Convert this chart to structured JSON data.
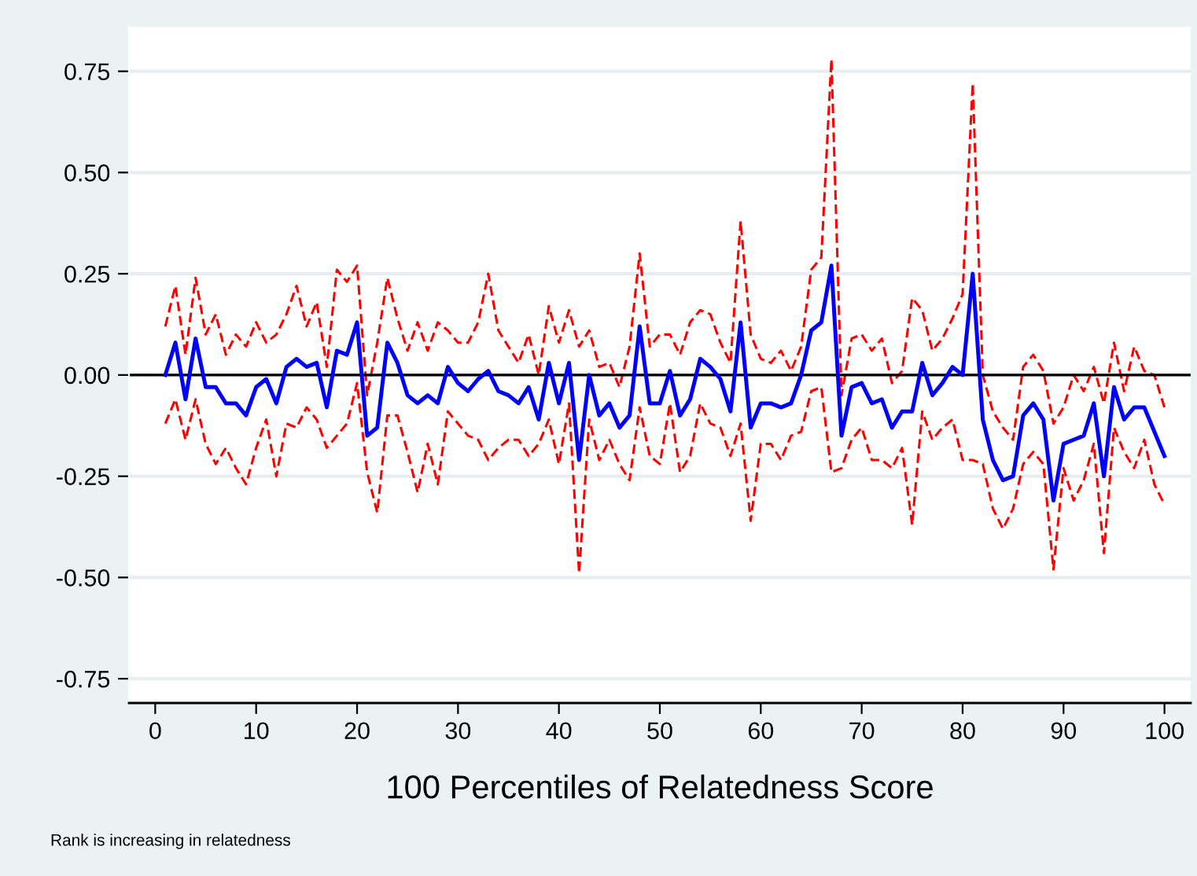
{
  "chart_data": {
    "type": "line",
    "xlabel": "100 Percentiles of Relatedness Score",
    "annotations": [
      "Rank is increasing in relatedness"
    ],
    "x": [
      1,
      2,
      3,
      4,
      5,
      6,
      7,
      8,
      9,
      10,
      11,
      12,
      13,
      14,
      15,
      16,
      17,
      18,
      19,
      20,
      21,
      22,
      23,
      24,
      25,
      26,
      27,
      28,
      29,
      30,
      31,
      32,
      33,
      34,
      35,
      36,
      37,
      38,
      39,
      40,
      41,
      42,
      43,
      44,
      45,
      46,
      47,
      48,
      49,
      50,
      51,
      52,
      53,
      54,
      55,
      56,
      57,
      58,
      59,
      60,
      61,
      62,
      63,
      64,
      65,
      66,
      67,
      68,
      69,
      70,
      71,
      72,
      73,
      74,
      75,
      76,
      77,
      78,
      79,
      80,
      81,
      82,
      83,
      84,
      85,
      86,
      87,
      88,
      89,
      90,
      91,
      92,
      93,
      94,
      95,
      96,
      97,
      98,
      99,
      100
    ],
    "series": [
      {
        "color": "#ff0000",
        "line_style": "dashed",
        "values": [
          0.12,
          0.22,
          0.05,
          0.24,
          0.1,
          0.15,
          0.05,
          0.1,
          0.07,
          0.13,
          0.08,
          0.1,
          0.15,
          0.22,
          0.12,
          0.18,
          0.02,
          0.26,
          0.23,
          0.27,
          -0.05,
          0.08,
          0.24,
          0.14,
          0.06,
          0.13,
          0.06,
          0.13,
          0.11,
          0.08,
          0.08,
          0.13,
          0.25,
          0.11,
          0.07,
          0.03,
          0.1,
          0.0,
          0.17,
          0.08,
          0.16,
          0.07,
          0.11,
          0.02,
          0.03,
          -0.03,
          0.07,
          0.3,
          0.07,
          0.1,
          0.1,
          0.05,
          0.13,
          0.16,
          0.15,
          0.08,
          0.03,
          0.38,
          0.1,
          0.04,
          0.03,
          0.06,
          0.01,
          0.07,
          0.26,
          0.29,
          0.78,
          -0.05,
          0.09,
          0.1,
          0.06,
          0.09,
          -0.02,
          0.01,
          0.19,
          0.16,
          0.06,
          0.09,
          0.14,
          0.2,
          0.72,
          0.0,
          -0.09,
          -0.13,
          -0.16,
          0.02,
          0.05,
          0.01,
          -0.12,
          -0.08,
          0.0,
          -0.04,
          0.02,
          -0.07,
          0.08,
          -0.04,
          0.07,
          0.01,
          0.0,
          -0.08
        ]
      },
      {
        "color": "#ff0000",
        "line_style": "dashed",
        "values": [
          -0.12,
          -0.06,
          -0.16,
          -0.06,
          -0.17,
          -0.22,
          -0.18,
          -0.23,
          -0.27,
          -0.18,
          -0.11,
          -0.25,
          -0.12,
          -0.13,
          -0.08,
          -0.11,
          -0.18,
          -0.15,
          -0.12,
          -0.02,
          -0.24,
          -0.34,
          -0.1,
          -0.1,
          -0.19,
          -0.29,
          -0.17,
          -0.27,
          -0.09,
          -0.12,
          -0.15,
          -0.16,
          -0.21,
          -0.18,
          -0.16,
          -0.16,
          -0.2,
          -0.17,
          -0.11,
          -0.22,
          -0.07,
          -0.49,
          -0.11,
          -0.21,
          -0.16,
          -0.22,
          -0.26,
          -0.08,
          -0.2,
          -0.22,
          -0.07,
          -0.24,
          -0.2,
          -0.07,
          -0.12,
          -0.13,
          -0.2,
          -0.12,
          -0.36,
          -0.17,
          -0.17,
          -0.21,
          -0.15,
          -0.14,
          -0.04,
          -0.03,
          -0.24,
          -0.23,
          -0.16,
          -0.13,
          -0.21,
          -0.21,
          -0.23,
          -0.18,
          -0.37,
          -0.09,
          -0.16,
          -0.13,
          -0.11,
          -0.21,
          -0.21,
          -0.22,
          -0.33,
          -0.38,
          -0.33,
          -0.22,
          -0.19,
          -0.22,
          -0.48,
          -0.23,
          -0.31,
          -0.26,
          -0.17,
          -0.44,
          -0.13,
          -0.19,
          -0.23,
          -0.16,
          -0.27,
          -0.32
        ]
      },
      {
        "color": "#0000ff",
        "line_style": "solid",
        "values": [
          0.0,
          0.08,
          -0.06,
          0.09,
          -0.03,
          -0.03,
          -0.07,
          -0.07,
          -0.1,
          -0.03,
          -0.01,
          -0.07,
          0.02,
          0.04,
          0.02,
          0.03,
          -0.08,
          0.06,
          0.05,
          0.13,
          -0.15,
          -0.13,
          0.08,
          0.03,
          -0.05,
          -0.07,
          -0.05,
          -0.07,
          0.02,
          -0.02,
          -0.04,
          -0.01,
          0.01,
          -0.04,
          -0.05,
          -0.07,
          -0.03,
          -0.11,
          0.03,
          -0.07,
          0.03,
          -0.21,
          0.0,
          -0.1,
          -0.07,
          -0.13,
          -0.1,
          0.12,
          -0.07,
          -0.07,
          0.01,
          -0.1,
          -0.06,
          0.04,
          0.02,
          -0.01,
          -0.09,
          0.13,
          -0.13,
          -0.07,
          -0.07,
          -0.08,
          -0.07,
          0.0,
          0.11,
          0.13,
          0.27,
          -0.15,
          -0.03,
          -0.02,
          -0.07,
          -0.06,
          -0.13,
          -0.09,
          -0.09,
          0.03,
          -0.05,
          -0.02,
          0.02,
          0.0,
          0.25,
          -0.11,
          -0.21,
          -0.26,
          -0.25,
          -0.1,
          -0.07,
          -0.11,
          -0.31,
          -0.17,
          -0.16,
          -0.15,
          -0.07,
          -0.25,
          -0.03,
          -0.11,
          -0.08,
          -0.08,
          -0.14,
          -0.2
        ]
      }
    ],
    "xlim": [
      -2.6,
      102.6
    ],
    "ylim": [
      -0.81,
      0.86
    ],
    "xticks": [
      0,
      10,
      20,
      30,
      40,
      50,
      60,
      70,
      80,
      90,
      100
    ],
    "yticks": [
      {
        "value": 0.75,
        "label": "0.75"
      },
      {
        "value": 0.5,
        "label": "0.50"
      },
      {
        "value": 0.25,
        "label": "0.25"
      },
      {
        "value": 0,
        "label": "0.00"
      },
      {
        "value": -0.25,
        "label": "-0.25"
      },
      {
        "value": -0.5,
        "label": "-0.50"
      },
      {
        "value": -0.75,
        "label": "-0.75"
      }
    ],
    "ref_lines": [
      {
        "axis": "y",
        "value": 0,
        "color": "#000000"
      }
    ],
    "grid": "y"
  }
}
